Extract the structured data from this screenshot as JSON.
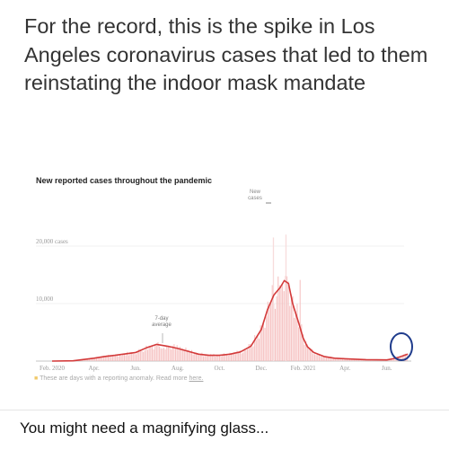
{
  "post": {
    "text": "For the record, this is the spike in Los Angeles coronavirus cases that led to them reinstating the indoor mask mandate",
    "caption": "You might need a magnifying glass..."
  },
  "chart_data": {
    "type": "area",
    "title": "New reported cases throughout the pandemic",
    "xlabel": "",
    "ylabel": "",
    "ylim": [
      0,
      25000
    ],
    "y_ticks": [
      {
        "value": 20000,
        "label": "20,000 cases"
      },
      {
        "value": 10000,
        "label": "10,000"
      }
    ],
    "x_ticks": [
      {
        "month": 0,
        "label": "Feb. 2020"
      },
      {
        "month": 2,
        "label": "Apr."
      },
      {
        "month": 4,
        "label": "Jun."
      },
      {
        "month": 6,
        "label": "Aug."
      },
      {
        "month": 8,
        "label": "Oct."
      },
      {
        "month": 10,
        "label": "Dec."
      },
      {
        "month": 12,
        "label": "Feb. 2021"
      },
      {
        "month": 14,
        "label": "Apr."
      },
      {
        "month": 16,
        "label": "Jun."
      }
    ],
    "annotations": {
      "new_cases": "New cases",
      "avg": "7-day average"
    },
    "footnote": {
      "swatch": "■",
      "text": "These are days with a reporting anomaly. Read more",
      "link": "here."
    },
    "series": [
      {
        "name": "7-day average",
        "x_month": [
          0,
          1,
          2,
          2.5,
          3,
          4,
          4.5,
          5,
          5.5,
          6,
          6.5,
          7,
          7.5,
          8,
          8.5,
          9,
          9.5,
          10,
          10.3,
          10.6,
          10.9,
          11.1,
          11.3,
          11.5,
          11.8,
          12.0,
          12.2,
          12.5,
          13,
          13.5,
          14,
          15,
          16,
          16.3,
          16.6,
          17
        ],
        "values": [
          0,
          50,
          500,
          800,
          1000,
          1500,
          2300,
          2900,
          2600,
          2200,
          1700,
          1200,
          1000,
          1000,
          1200,
          1600,
          2600,
          5500,
          9000,
          11500,
          12800,
          14000,
          13500,
          10000,
          6500,
          4000,
          2500,
          1500,
          800,
          500,
          400,
          250,
          200,
          400,
          700,
          1200
        ]
      }
    ],
    "accent": "#d33a3a",
    "fill": "#f4b9b9",
    "highlight_circle": "#1f3c8c"
  }
}
